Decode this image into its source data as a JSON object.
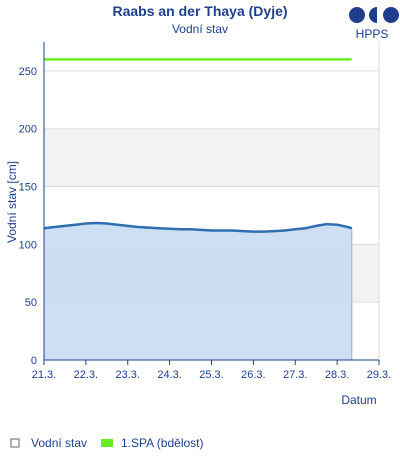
{
  "header": {
    "title": "Raabs an der Thaya (Dyje)",
    "subtitle": "Vodní stav"
  },
  "logo": {
    "text": "HPPS",
    "color": "#1f3f8c"
  },
  "legend": {
    "items": [
      {
        "label": "Vodní stav",
        "color": "#ffffff",
        "border": "#666666"
      },
      {
        "label": "1.SPA (bdělost)",
        "color": "#66ee22",
        "border": "#66ee22"
      }
    ]
  },
  "colors": {
    "text": "#1f3f8c",
    "area_fill": "#c6dcf2",
    "line": "#2f6fb0",
    "threshold": "#66ee22",
    "band": "#f2f2f2",
    "grid": "#dddddd"
  },
  "chart_data": {
    "type": "area",
    "title": "Raabs an der Thaya (Dyje)",
    "subtitle": "Vodní stav",
    "xlabel": "Datum",
    "ylabel": "Vodní stav [cm]",
    "x_ticks": [
      "21.3.",
      "22.3.",
      "23.3.",
      "24.3.",
      "25.3.",
      "26.3.",
      "27.3.",
      "28.3.",
      "29.3."
    ],
    "ylim": [
      0,
      275
    ],
    "y_ticks": [
      0,
      50,
      100,
      150,
      200,
      250
    ],
    "xlim_days": [
      0,
      8
    ],
    "series": [
      {
        "name": "Vodní stav",
        "x_days": [
          0,
          0.25,
          0.5,
          0.75,
          1.0,
          1.25,
          1.5,
          1.75,
          2.0,
          2.25,
          2.5,
          2.75,
          3.0,
          3.25,
          3.5,
          3.75,
          4.0,
          4.25,
          4.5,
          4.75,
          5.0,
          5.25,
          5.5,
          5.75,
          6.0,
          6.25,
          6.5,
          6.75,
          7.0,
          7.25,
          7.35
        ],
        "values": [
          114,
          115,
          116,
          117,
          118,
          118.5,
          118,
          117,
          116,
          115,
          114.5,
          114,
          113.5,
          113,
          113,
          112.5,
          112,
          112,
          112,
          111.5,
          111,
          111,
          111.5,
          112,
          113,
          114,
          116,
          117.5,
          117,
          115,
          114
        ]
      },
      {
        "name": "1.SPA (bdělost)",
        "x_days": [
          0,
          7.35
        ],
        "values": [
          260,
          260
        ]
      }
    ],
    "legend_position": "bottom-left",
    "grid": true
  }
}
